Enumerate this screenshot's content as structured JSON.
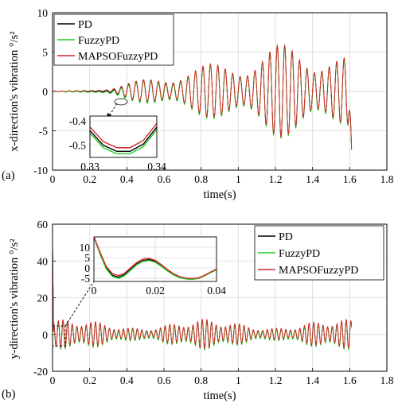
{
  "chart_data": [
    {
      "type": "line",
      "panel_label": "(a)",
      "xlabel": "time(s)",
      "ylabel": "x-direction's vibration  °/s²",
      "xlim": [
        0,
        1.8
      ],
      "ylim": [
        -10,
        10
      ],
      "xticks": [
        0,
        0.2,
        0.4,
        0.6,
        0.8,
        1,
        1.2,
        1.4,
        1.6,
        1.8
      ],
      "yticks": [
        -10,
        -5,
        0,
        5,
        10
      ],
      "grid": true,
      "legend": {
        "placement": "top-left",
        "entries": [
          {
            "name": "PD",
            "color": "#000000"
          },
          {
            "name": "FuzzyPD",
            "color": "#22cc22"
          },
          {
            "name": "MAPSOFuzzyPD",
            "color": "#d62728"
          }
        ]
      },
      "series": [
        {
          "name": "PD",
          "color": "#000000"
        },
        {
          "name": "FuzzyPD",
          "color": "#22cc22"
        },
        {
          "name": "MAPSOFuzzyPD",
          "color": "#d62728"
        }
      ],
      "signal": {
        "x_end": 1.61,
        "envelope_x": [
          0,
          0.26,
          0.32,
          0.38,
          0.5,
          0.7,
          0.9,
          1.0,
          1.2,
          1.3,
          1.45,
          1.55,
          1.6
        ],
        "envelope_amplitude": [
          0.05,
          0.1,
          0.35,
          0.8,
          1.5,
          2.8,
          3.6,
          4.2,
          5.8,
          6.0,
          5.6,
          4.6,
          4.2
        ],
        "end_value": -7.4
      },
      "inset": {
        "xlim": [
          0.33,
          0.34
        ],
        "ylim": [
          -0.55,
          -0.38
        ],
        "xticks": [
          0.33,
          0.34
        ],
        "yticks": [
          -0.4,
          -0.5
        ],
        "grid": true,
        "curves": {
          "x": [
            0.33,
            0.332,
            0.334,
            0.336,
            0.338,
            0.34
          ],
          "PD": [
            -0.44,
            -0.5,
            -0.525,
            -0.525,
            -0.495,
            -0.425
          ],
          "FuzzyPD": [
            -0.45,
            -0.51,
            -0.535,
            -0.535,
            -0.505,
            -0.435
          ],
          "MAPSOFuzzyPD": [
            -0.425,
            -0.485,
            -0.51,
            -0.51,
            -0.48,
            -0.41
          ]
        }
      }
    },
    {
      "type": "line",
      "panel_label": "(b)",
      "xlabel": "time(s)",
      "ylabel": "y-direction's vibration  °/s²",
      "xlim": [
        0,
        1.8
      ],
      "ylim": [
        -20,
        60
      ],
      "xticks": [
        0,
        0.2,
        0.4,
        0.6,
        0.8,
        1,
        1.2,
        1.4,
        1.6,
        1.8
      ],
      "yticks": [
        -20,
        0,
        20,
        40,
        60
      ],
      "grid": true,
      "legend": {
        "placement": "right",
        "entries": [
          {
            "name": "PD",
            "color": "#000000"
          },
          {
            "name": "FuzzyPD",
            "color": "#22cc22"
          },
          {
            "name": "MAPSOFuzzyPD",
            "color": "#d62728"
          }
        ]
      },
      "series": [
        {
          "name": "PD",
          "color": "#000000"
        },
        {
          "name": "FuzzyPD",
          "color": "#22cc22"
        },
        {
          "name": "MAPSOFuzzyPD",
          "color": "#d62728"
        }
      ],
      "signal": {
        "x_end": 1.61,
        "initial_peak": 50,
        "mean": 0,
        "amplitude_range": [
          3,
          8
        ]
      },
      "inset": {
        "xlim": [
          0,
          0.04
        ],
        "ylim": [
          -6.5,
          15
        ],
        "xticks": [
          0,
          0.02,
          0.04
        ],
        "yticks": [
          -5,
          0,
          5,
          10
        ],
        "grid": true,
        "curves": {
          "x": [
            0,
            0.002,
            0.004,
            0.006,
            0.008,
            0.01,
            0.012,
            0.014,
            0.016,
            0.018,
            0.02,
            0.022,
            0.024,
            0.026,
            0.028,
            0.03,
            0.032,
            0.034,
            0.036,
            0.038,
            0.04
          ],
          "PD": [
            15,
            7,
            0,
            -3.5,
            -4.5,
            -3.2,
            -0.5,
            2.0,
            3.6,
            4.0,
            3.2,
            1.2,
            -1.2,
            -3.2,
            -4.5,
            -5.2,
            -5.4,
            -5.0,
            -3.8,
            -2.2,
            -0.8
          ],
          "FuzzyPD": [
            15,
            6.6,
            -0.4,
            -4.0,
            -5.0,
            -3.7,
            -1.0,
            1.6,
            3.2,
            3.6,
            2.8,
            0.8,
            -1.5,
            -3.4,
            -4.7,
            -5.3,
            -5.5,
            -5.1,
            -3.9,
            -2.3,
            -0.9
          ],
          "MAPSOFuzzyPD": [
            15,
            7.6,
            0.8,
            -2.7,
            -3.7,
            -2.5,
            0.1,
            2.7,
            4.3,
            4.6,
            3.7,
            1.6,
            -0.8,
            -2.8,
            -4.2,
            -4.9,
            -5.1,
            -4.8,
            -3.6,
            -2.0,
            -0.6
          ]
        }
      }
    }
  ]
}
